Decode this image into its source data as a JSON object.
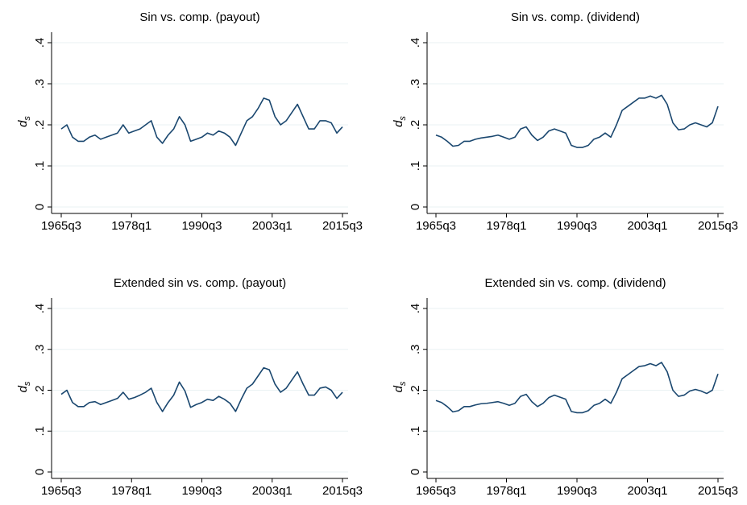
{
  "chart_data": [
    {
      "type": "line",
      "title": "Sin vs. comp. (payout)",
      "ylabel": "d",
      "ylabel_sub": "s",
      "x": [
        "1965q3",
        "1966q3",
        "1967q3",
        "1968q3",
        "1969q3",
        "1970q3",
        "1971q3",
        "1972q3",
        "1973q3",
        "1974q3",
        "1975q3",
        "1976q3",
        "1977q3",
        "1978q3",
        "1979q3",
        "1980q3",
        "1981q3",
        "1982q3",
        "1983q3",
        "1984q3",
        "1985q3",
        "1986q3",
        "1987q3",
        "1988q3",
        "1989q3",
        "1990q3",
        "1991q3",
        "1992q3",
        "1993q3",
        "1994q3",
        "1995q3",
        "1996q3",
        "1997q3",
        "1998q3",
        "1999q3",
        "2000q3",
        "2001q3",
        "2002q3",
        "2003q3",
        "2004q3",
        "2005q3",
        "2006q3",
        "2007q3",
        "2008q3",
        "2009q3",
        "2010q3",
        "2011q3",
        "2012q3",
        "2013q3",
        "2014q3",
        "2015q3"
      ],
      "series": [
        {
          "color": "#1a476f",
          "values": [
            0.19,
            0.2,
            0.17,
            0.16,
            0.16,
            0.17,
            0.175,
            0.165,
            0.17,
            0.175,
            0.18,
            0.2,
            0.18,
            0.185,
            0.19,
            0.2,
            0.21,
            0.17,
            0.155,
            0.175,
            0.19,
            0.22,
            0.2,
            0.16,
            0.165,
            0.17,
            0.18,
            0.175,
            0.185,
            0.18,
            0.17,
            0.15,
            0.18,
            0.21,
            0.22,
            0.24,
            0.265,
            0.26,
            0.22,
            0.2,
            0.21,
            0.23,
            0.25,
            0.22,
            0.19,
            0.19,
            0.21,
            0.21,
            0.205,
            0.18,
            0.195
          ]
        }
      ],
      "xticks": [
        "1965q3",
        "1978q1",
        "1990q3",
        "2003q1",
        "2015q3"
      ],
      "ylim": [
        0,
        0.4
      ],
      "yticks": [
        0,
        {
          "value": 0.1,
          "label": ".1"
        },
        {
          "value": 0.2,
          "label": ".2"
        },
        {
          "value": 0.3,
          "label": ".3"
        },
        {
          "value": 0.4,
          "label": ".4"
        }
      ],
      "grid": true
    },
    {
      "type": "line",
      "title": "Sin vs. comp. (dividend)",
      "ylabel": "d",
      "ylabel_sub": "s",
      "x": [
        "1965q3",
        "1966q3",
        "1967q3",
        "1968q3",
        "1969q3",
        "1970q3",
        "1971q3",
        "1972q3",
        "1973q3",
        "1974q3",
        "1975q3",
        "1976q3",
        "1977q3",
        "1978q3",
        "1979q3",
        "1980q3",
        "1981q3",
        "1982q3",
        "1983q3",
        "1984q3",
        "1985q3",
        "1986q3",
        "1987q3",
        "1988q3",
        "1989q3",
        "1990q3",
        "1991q3",
        "1992q3",
        "1993q3",
        "1994q3",
        "1995q3",
        "1996q3",
        "1997q3",
        "1998q3",
        "1999q3",
        "2000q3",
        "2001q3",
        "2002q3",
        "2003q3",
        "2004q3",
        "2005q3",
        "2006q3",
        "2007q3",
        "2008q3",
        "2009q3",
        "2010q3",
        "2011q3",
        "2012q3",
        "2013q3",
        "2014q3",
        "2015q3"
      ],
      "series": [
        {
          "color": "#1a476f",
          "values": [
            0.175,
            0.17,
            0.16,
            0.148,
            0.15,
            0.16,
            0.16,
            0.165,
            0.168,
            0.17,
            0.172,
            0.175,
            0.17,
            0.165,
            0.17,
            0.19,
            0.195,
            0.175,
            0.162,
            0.17,
            0.185,
            0.19,
            0.185,
            0.18,
            0.15,
            0.145,
            0.145,
            0.15,
            0.165,
            0.17,
            0.18,
            0.17,
            0.2,
            0.235,
            0.245,
            0.255,
            0.265,
            0.265,
            0.27,
            0.265,
            0.272,
            0.25,
            0.205,
            0.188,
            0.19,
            0.2,
            0.205,
            0.2,
            0.195,
            0.205,
            0.245
          ]
        }
      ],
      "xticks": [
        "1965q3",
        "1978q1",
        "1990q3",
        "2003q1",
        "2015q3"
      ],
      "ylim": [
        0,
        0.4
      ],
      "yticks": [
        0,
        {
          "value": 0.1,
          "label": ".1"
        },
        {
          "value": 0.2,
          "label": ".2"
        },
        {
          "value": 0.3,
          "label": ".3"
        },
        {
          "value": 0.4,
          "label": ".4"
        }
      ],
      "grid": true
    },
    {
      "type": "line",
      "title": "Extended sin vs. comp. (payout)",
      "ylabel": "d",
      "ylabel_sub": "s",
      "x": [
        "1965q3",
        "1966q3",
        "1967q3",
        "1968q3",
        "1969q3",
        "1970q3",
        "1971q3",
        "1972q3",
        "1973q3",
        "1974q3",
        "1975q3",
        "1976q3",
        "1977q3",
        "1978q3",
        "1979q3",
        "1980q3",
        "1981q3",
        "1982q3",
        "1983q3",
        "1984q3",
        "1985q3",
        "1986q3",
        "1987q3",
        "1988q3",
        "1989q3",
        "1990q3",
        "1991q3",
        "1992q3",
        "1993q3",
        "1994q3",
        "1995q3",
        "1996q3",
        "1997q3",
        "1998q3",
        "1999q3",
        "2000q3",
        "2001q3",
        "2002q3",
        "2003q3",
        "2004q3",
        "2005q3",
        "2006q3",
        "2007q3",
        "2008q3",
        "2009q3",
        "2010q3",
        "2011q3",
        "2012q3",
        "2013q3",
        "2014q3",
        "2015q3"
      ],
      "series": [
        {
          "color": "#1a476f",
          "values": [
            0.19,
            0.2,
            0.17,
            0.16,
            0.16,
            0.17,
            0.172,
            0.165,
            0.17,
            0.175,
            0.18,
            0.195,
            0.178,
            0.182,
            0.188,
            0.195,
            0.205,
            0.17,
            0.148,
            0.17,
            0.188,
            0.22,
            0.198,
            0.158,
            0.165,
            0.17,
            0.178,
            0.175,
            0.185,
            0.178,
            0.168,
            0.148,
            0.178,
            0.205,
            0.215,
            0.235,
            0.255,
            0.25,
            0.215,
            0.195,
            0.205,
            0.225,
            0.245,
            0.215,
            0.188,
            0.188,
            0.205,
            0.208,
            0.2,
            0.18,
            0.195
          ]
        }
      ],
      "xticks": [
        "1965q3",
        "1978q1",
        "1990q3",
        "2003q1",
        "2015q3"
      ],
      "ylim": [
        0,
        0.4
      ],
      "yticks": [
        0,
        {
          "value": 0.1,
          "label": ".1"
        },
        {
          "value": 0.2,
          "label": ".2"
        },
        {
          "value": 0.3,
          "label": ".3"
        },
        {
          "value": 0.4,
          "label": ".4"
        }
      ],
      "grid": true
    },
    {
      "type": "line",
      "title": "Extended sin vs. comp. (dividend)",
      "ylabel": "d",
      "ylabel_sub": "s",
      "x": [
        "1965q3",
        "1966q3",
        "1967q3",
        "1968q3",
        "1969q3",
        "1970q3",
        "1971q3",
        "1972q3",
        "1973q3",
        "1974q3",
        "1975q3",
        "1976q3",
        "1977q3",
        "1978q3",
        "1979q3",
        "1980q3",
        "1981q3",
        "1982q3",
        "1983q3",
        "1984q3",
        "1985q3",
        "1986q3",
        "1987q3",
        "1988q3",
        "1989q3",
        "1990q3",
        "1991q3",
        "1992q3",
        "1993q3",
        "1994q3",
        "1995q3",
        "1996q3",
        "1997q3",
        "1998q3",
        "1999q3",
        "2000q3",
        "2001q3",
        "2002q3",
        "2003q3",
        "2004q3",
        "2005q3",
        "2006q3",
        "2007q3",
        "2008q3",
        "2009q3",
        "2010q3",
        "2011q3",
        "2012q3",
        "2013q3",
        "2014q3",
        "2015q3"
      ],
      "series": [
        {
          "color": "#1a476f",
          "values": [
            0.175,
            0.17,
            0.16,
            0.147,
            0.15,
            0.16,
            0.16,
            0.164,
            0.167,
            0.168,
            0.17,
            0.172,
            0.168,
            0.163,
            0.168,
            0.185,
            0.19,
            0.172,
            0.16,
            0.168,
            0.182,
            0.188,
            0.183,
            0.178,
            0.148,
            0.145,
            0.145,
            0.15,
            0.163,
            0.168,
            0.178,
            0.168,
            0.195,
            0.228,
            0.238,
            0.248,
            0.258,
            0.26,
            0.265,
            0.26,
            0.268,
            0.245,
            0.2,
            0.185,
            0.188,
            0.198,
            0.202,
            0.198,
            0.192,
            0.2,
            0.24
          ]
        }
      ],
      "xticks": [
        "1965q3",
        "1978q1",
        "1990q3",
        "2003q1",
        "2015q3"
      ],
      "ylim": [
        0,
        0.4
      ],
      "yticks": [
        0,
        {
          "value": 0.1,
          "label": ".1"
        },
        {
          "value": 0.2,
          "label": ".2"
        },
        {
          "value": 0.3,
          "label": ".3"
        },
        {
          "value": 0.4,
          "label": ".4"
        }
      ],
      "grid": true
    }
  ]
}
